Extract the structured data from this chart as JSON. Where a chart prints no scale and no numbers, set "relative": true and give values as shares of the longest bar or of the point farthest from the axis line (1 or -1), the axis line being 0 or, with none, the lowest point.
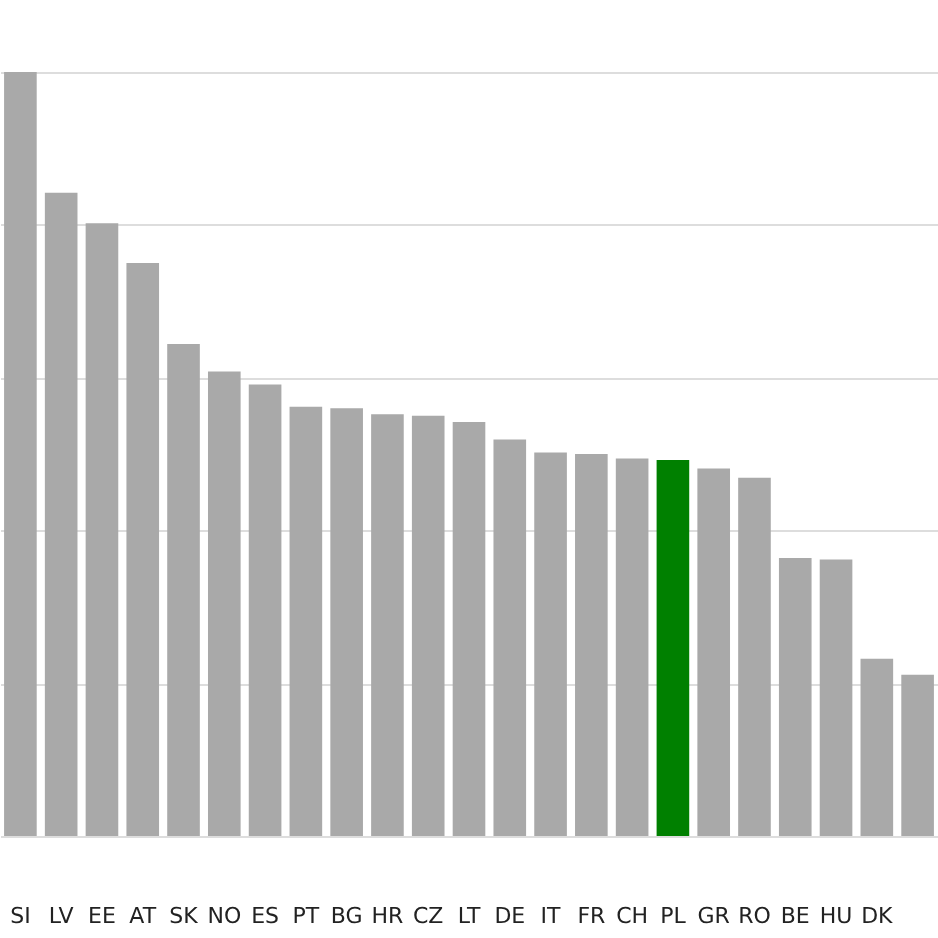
{
  "chart_data": {
    "type": "bar",
    "relative": true,
    "grid": "y",
    "categories": [
      "SI",
      "LV",
      "EE",
      "AT",
      "SK",
      "NO",
      "ES",
      "PT",
      "BG",
      "HR",
      "CZ",
      "LT",
      "DE",
      "IT",
      "FR",
      "CH",
      "PL",
      "GR",
      "RO",
      "BE",
      "HU",
      "DK",
      null
    ],
    "values": [
      1,
      0.842,
      0.802,
      0.75,
      0.644,
      0.608,
      0.591,
      0.562,
      0.56,
      0.552,
      0.55,
      0.542,
      0.519,
      0.502,
      0.5,
      0.494,
      0.492,
      0.481,
      0.469,
      0.364,
      0.362,
      0.232,
      0.211
    ],
    "colors": [
      "#a9a9a9",
      "#a9a9a9",
      "#a9a9a9",
      "#a9a9a9",
      "#a9a9a9",
      "#a9a9a9",
      "#a9a9a9",
      "#a9a9a9",
      "#a9a9a9",
      "#a9a9a9",
      "#a9a9a9",
      "#a9a9a9",
      "#a9a9a9",
      "#a9a9a9",
      "#a9a9a9",
      "#a9a9a9",
      "#008000",
      "#a9a9a9",
      "#a9a9a9",
      "#a9a9a9",
      "#a9a9a9",
      "#a9a9a9",
      "#a9a9a9"
    ]
  }
}
